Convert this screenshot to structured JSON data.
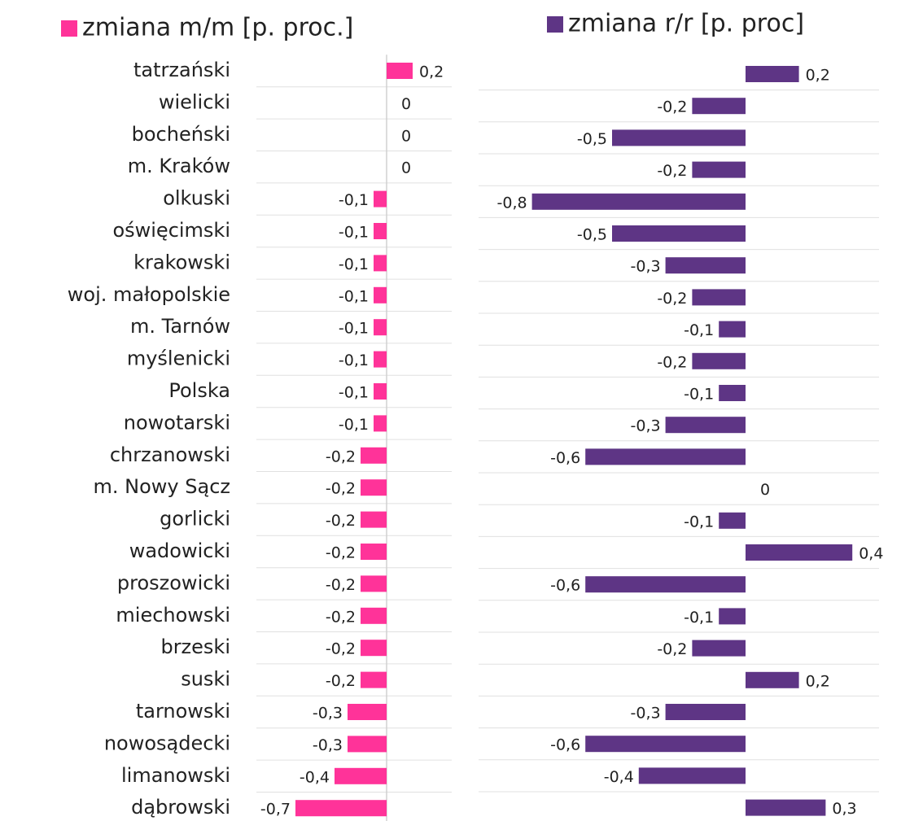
{
  "chart_data": {
    "type": "bar",
    "orientation": "horizontal",
    "categories": [
      "tatrzański",
      "wielicki",
      "bocheński",
      "m. Kraków",
      "olkuski",
      "oświęcimski",
      "krakowski",
      "woj. małopolskie",
      "m. Tarnów",
      "myślenicki",
      "Polska",
      "nowotarski",
      "chrzanowski",
      "m. Nowy Sącz",
      "gorlicki",
      "wadowicki",
      "proszowicki",
      "miechowski",
      "brzeski",
      "suski",
      "tarnowski",
      "nowosądecki",
      "limanowski",
      "dąbrowski"
    ],
    "xlim": [
      -1,
      0.5
    ],
    "series": [
      {
        "name": "zmiana m/m [p. proc.]",
        "color": "#ff3399",
        "values": [
          0.2,
          0,
          0,
          0,
          -0.1,
          -0.1,
          -0.1,
          -0.1,
          -0.1,
          -0.1,
          -0.1,
          -0.1,
          -0.2,
          -0.2,
          -0.2,
          -0.2,
          -0.2,
          -0.2,
          -0.2,
          -0.2,
          -0.3,
          -0.3,
          -0.4,
          -0.7
        ],
        "value_labels": [
          "0,2",
          "0",
          "0",
          "0",
          "-0,1",
          "-0,1",
          "-0,1",
          "-0,1",
          "-0,1",
          "-0,1",
          "-0,1",
          "-0,1",
          "-0,2",
          "-0,2",
          "-0,2",
          "-0,2",
          "-0,2",
          "-0,2",
          "-0,2",
          "-0,2",
          "-0,3",
          "-0,3",
          "-0,4",
          "-0,7"
        ]
      },
      {
        "name": "zmiana r/r [p. proc]",
        "color": "#5e3585",
        "values": [
          0.2,
          -0.2,
          -0.5,
          -0.2,
          -0.8,
          -0.5,
          -0.3,
          -0.2,
          -0.1,
          -0.2,
          -0.1,
          -0.3,
          -0.6,
          0,
          -0.1,
          0.4,
          -0.6,
          -0.1,
          -0.2,
          0.2,
          -0.3,
          -0.6,
          -0.4,
          0.3
        ],
        "value_labels": [
          "0,2",
          "-0,2",
          "-0,5",
          "-0,2",
          "-0,8",
          "-0,5",
          "-0,3",
          "-0,2",
          "-0,1",
          "-0,2",
          "-0,1",
          "-0,3",
          "-0,6",
          "0",
          "-0,1",
          "0,4",
          "-0,6",
          "-0,1",
          "-0,2",
          "0,2",
          "-0,3",
          "-0,6",
          "-0,4",
          "0,3"
        ]
      }
    ]
  }
}
